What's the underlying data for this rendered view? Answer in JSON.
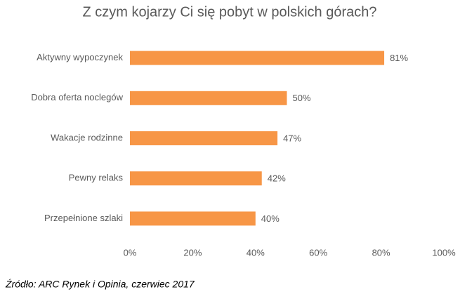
{
  "chart_data": {
    "type": "bar",
    "orientation": "horizontal",
    "title": "Z czym kojarzy Ci się pobyt w polskich górach?",
    "categories": [
      "Aktywny wypoczynek",
      "Dobra oferta noclegów",
      "Wakacje rodzinne",
      "Pewny relaks",
      "Przepełnione szlaki"
    ],
    "values": [
      81,
      50,
      47,
      42,
      40
    ],
    "value_labels": [
      "81%",
      "50%",
      "47%",
      "42%",
      "40%"
    ],
    "color": "#f79646",
    "xlim": [
      0,
      100
    ],
    "xticks": [
      {
        "value": 0,
        "label": "0%"
      },
      {
        "value": 20,
        "label": "20%"
      },
      {
        "value": 40,
        "label": "40%"
      },
      {
        "value": 60,
        "label": "60%"
      },
      {
        "value": 80,
        "label": "80%"
      },
      {
        "value": 100,
        "label": "100%"
      }
    ],
    "grid": false,
    "source": "Źródło: ARC Rynek  i Opinia, czerwiec  2017"
  }
}
